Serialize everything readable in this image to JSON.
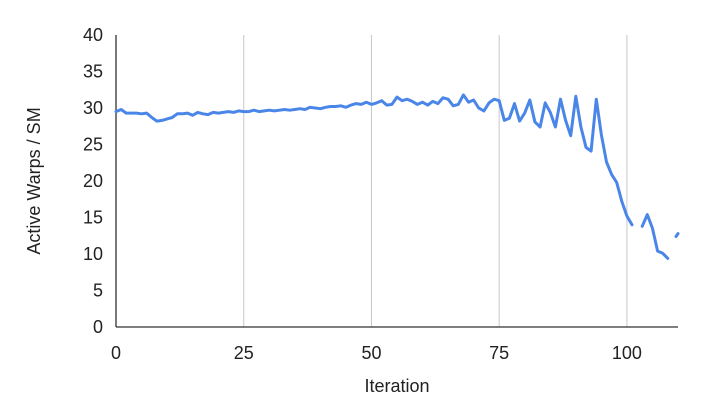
{
  "chart_data": {
    "type": "line",
    "xlabel": "Iteration",
    "ylabel": "Active Warps / SM",
    "xlim": [
      0,
      110
    ],
    "ylim": [
      0,
      40
    ],
    "xticks": [
      0,
      25,
      50,
      75,
      100
    ],
    "yticks": [
      0,
      5,
      10,
      15,
      20,
      25,
      30,
      35,
      40
    ],
    "grid": "vertical",
    "legend": "none",
    "line_color": "#4a86e8",
    "series": [
      {
        "segments": [
          {
            "x": [
              0,
              1,
              2,
              3,
              4,
              5,
              6,
              7,
              8,
              9,
              10,
              11,
              12,
              13,
              14,
              15,
              16,
              17,
              18,
              19,
              20,
              21,
              22,
              23,
              24,
              25,
              26,
              27,
              28,
              29,
              30,
              31,
              32,
              33,
              34,
              35,
              36,
              37,
              38,
              39,
              40,
              41,
              42,
              43,
              44,
              45,
              46,
              47,
              48,
              49,
              50,
              51,
              52,
              53,
              54,
              55,
              56,
              57,
              58,
              59,
              60,
              61,
              62,
              63,
              64,
              65,
              66,
              67,
              68,
              69,
              70,
              71,
              72,
              73,
              74,
              75,
              76,
              77,
              78,
              79,
              80,
              81,
              82,
              83,
              84,
              85,
              86,
              87,
              88,
              89,
              90,
              91,
              92,
              93,
              94,
              95,
              96,
              97,
              98,
              99,
              100,
              101
            ],
            "y": [
              29.5,
              29.8,
              29.3,
              29.3,
              29.3,
              29.2,
              29.3,
              28.7,
              28.2,
              28.3,
              28.5,
              28.7,
              29.2,
              29.2,
              29.3,
              29.0,
              29.4,
              29.2,
              29.1,
              29.4,
              29.3,
              29.4,
              29.5,
              29.4,
              29.6,
              29.5,
              29.5,
              29.7,
              29.5,
              29.6,
              29.7,
              29.6,
              29.7,
              29.8,
              29.7,
              29.8,
              29.9,
              29.8,
              30.1,
              30.0,
              29.9,
              30.1,
              30.2,
              30.2,
              30.3,
              30.1,
              30.4,
              30.6,
              30.5,
              30.8,
              30.5,
              30.7,
              31.0,
              30.4,
              30.5,
              31.5,
              31.0,
              31.2,
              30.9,
              30.5,
              30.8,
              30.4,
              30.9,
              30.6,
              31.4,
              31.2,
              30.3,
              30.5,
              31.8,
              30.8,
              31.1,
              30.0,
              29.6,
              30.7,
              31.2,
              31.0,
              28.3,
              28.6,
              30.6,
              28.2,
              29.3,
              31.1,
              28.1,
              27.4,
              30.7,
              29.4,
              27.4,
              31.2,
              28.3,
              26.2,
              31.6,
              27.4,
              24.6,
              24.1,
              31.2,
              26.3,
              22.6,
              20.9,
              19.8,
              17.2,
              15.2,
              14.0
            ]
          },
          {
            "x": [
              103,
              104,
              105,
              106,
              107,
              108
            ],
            "y": [
              13.8,
              15.4,
              13.5,
              10.4,
              10.1,
              9.4
            ]
          },
          {
            "x": [
              109.6,
              110
            ],
            "y": [
              12.4,
              12.8
            ]
          }
        ]
      }
    ]
  }
}
